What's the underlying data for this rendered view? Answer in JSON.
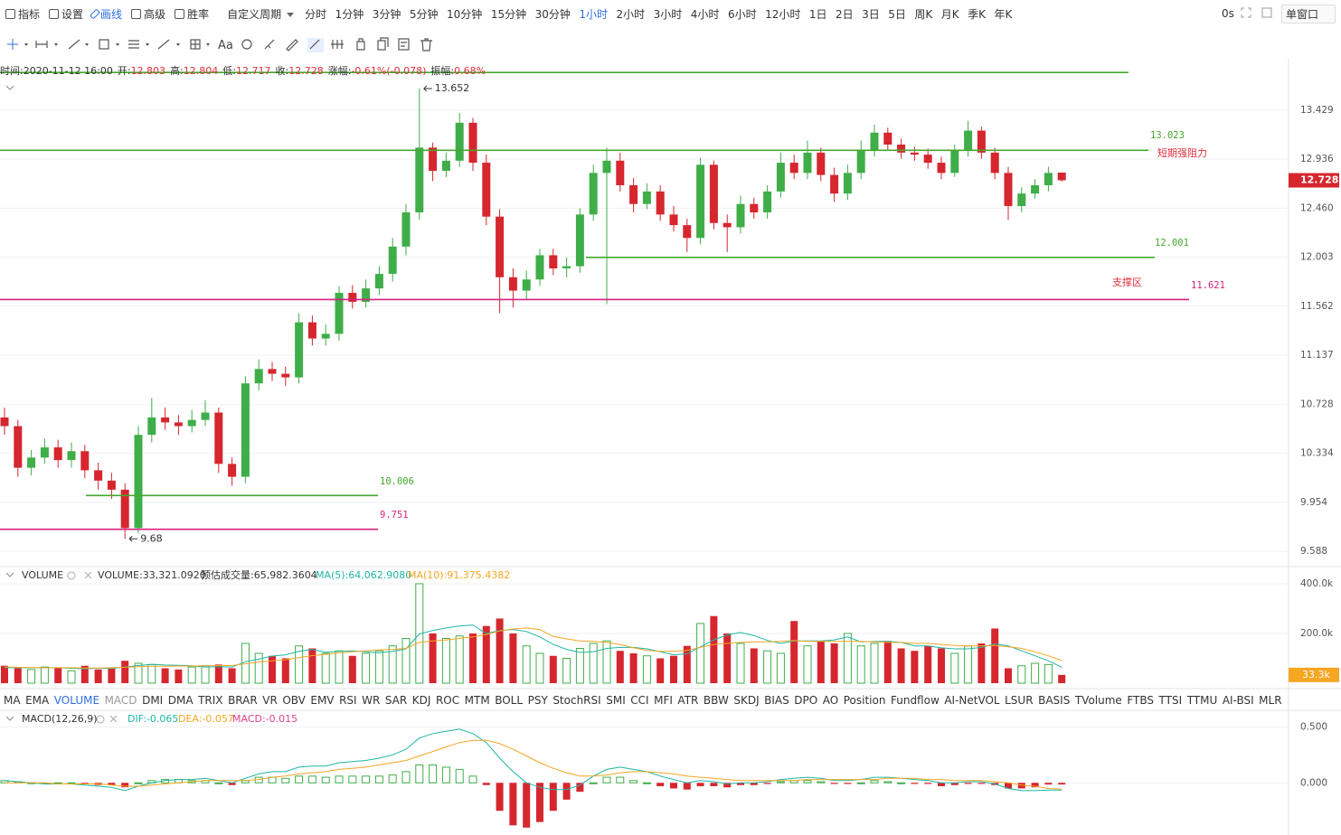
{
  "toolbar": {
    "menu": [
      "指标",
      "设置",
      "画线",
      "高级",
      "胜率"
    ],
    "menu_active": 2,
    "custom_period": "自定义周期",
    "periods": [
      "分时",
      "1分钟",
      "3分钟",
      "5分钟",
      "10分钟",
      "15分钟",
      "30分钟",
      "1小时",
      "2小时",
      "3小时",
      "4小时",
      "6小时",
      "12小时",
      "1日",
      "2日",
      "3日",
      "5日",
      "周K",
      "月K",
      "季K",
      "年K"
    ],
    "period_active": 7,
    "timer": "0s",
    "window_mode": "单窗口",
    "text_tool": "Aa"
  },
  "ohlc_info": [
    {
      "label": "时间:",
      "value": "2020-11-12 16:00"
    },
    {
      "label": "开:",
      "value": 12.803
    },
    {
      "label": "高:",
      "value": 12.804
    },
    {
      "label": "低:",
      "value": 12.717
    },
    {
      "label": "收:",
      "value": 12.728
    },
    {
      "label": "涨幅:",
      "value": "-0.61%(-0.078)"
    },
    {
      "label": "振幅:",
      "value": "0.68%"
    }
  ],
  "chart_data": [
    {
      "type": "candlestick",
      "up_color": "#3fae49",
      "down_color": "#d6262e",
      "open": [
        10.62,
        10.55,
        10.22,
        10.3,
        10.38,
        10.28,
        10.35,
        10.2,
        10.12,
        10.05,
        9.76,
        10.48,
        10.62,
        10.58,
        10.55,
        10.6,
        10.66,
        10.25,
        10.15,
        10.9,
        11.02,
        10.98,
        10.95,
        11.42,
        11.28,
        11.32,
        11.68,
        11.6,
        11.72,
        11.85,
        12.1,
        12.42,
        13.05,
        12.82,
        12.92,
        13.3,
        12.9,
        12.38,
        11.82,
        11.7,
        11.8,
        12.02,
        11.9,
        11.92,
        12.4,
        12.8,
        12.92,
        12.68,
        12.5,
        12.62,
        12.4,
        12.3,
        12.18,
        12.88,
        12.32,
        12.28,
        12.5,
        12.42,
        12.62,
        12.9,
        12.8,
        13.0,
        12.78,
        12.6,
        12.8,
        13.02,
        13.2,
        13.08,
        13.0,
        12.98,
        12.9,
        12.8,
        13.02,
        13.22,
        13.0,
        12.8,
        12.48,
        12.6,
        12.68,
        12.803
      ],
      "high": [
        10.7,
        10.6,
        10.36,
        10.45,
        10.44,
        10.42,
        10.4,
        10.26,
        10.18,
        10.1,
        10.55,
        10.78,
        10.7,
        10.64,
        10.68,
        10.76,
        10.7,
        10.3,
        10.96,
        11.1,
        11.08,
        11.04,
        11.5,
        11.48,
        11.4,
        11.74,
        11.75,
        11.8,
        11.92,
        12.18,
        12.5,
        13.652,
        13.1,
        13.0,
        13.4,
        13.35,
        12.98,
        12.45,
        11.9,
        11.88,
        12.08,
        12.08,
        12.0,
        12.46,
        12.88,
        13.05,
        13.0,
        12.75,
        12.7,
        12.68,
        12.48,
        12.36,
        12.95,
        12.92,
        12.4,
        12.58,
        12.56,
        12.68,
        13.0,
        12.98,
        13.12,
        13.05,
        12.85,
        12.88,
        13.12,
        13.28,
        13.25,
        13.14,
        13.06,
        13.04,
        12.96,
        13.08,
        13.32,
        13.26,
        13.05,
        12.86,
        12.66,
        12.74,
        12.86,
        12.804
      ],
      "low": [
        10.48,
        10.15,
        10.16,
        10.25,
        10.22,
        10.22,
        10.14,
        10.05,
        9.98,
        9.68,
        9.72,
        10.42,
        10.52,
        10.48,
        10.5,
        10.55,
        10.18,
        10.08,
        10.1,
        10.84,
        10.92,
        10.88,
        10.9,
        11.22,
        11.22,
        11.26,
        11.54,
        11.55,
        11.66,
        11.78,
        12.02,
        12.35,
        12.72,
        12.76,
        12.86,
        12.82,
        12.3,
        11.5,
        11.55,
        11.62,
        11.74,
        11.84,
        11.82,
        11.86,
        12.34,
        11.58,
        12.62,
        12.42,
        12.45,
        12.34,
        12.24,
        12.05,
        12.12,
        12.26,
        12.05,
        12.22,
        12.36,
        12.36,
        12.56,
        12.74,
        12.74,
        12.72,
        12.52,
        12.54,
        12.74,
        12.96,
        13.02,
        12.94,
        12.92,
        12.84,
        12.74,
        12.76,
        12.96,
        12.94,
        12.74,
        12.35,
        12.42,
        12.55,
        12.62,
        12.717
      ],
      "close": [
        10.55,
        10.22,
        10.3,
        10.38,
        10.28,
        10.35,
        10.2,
        10.12,
        10.05,
        9.76,
        10.48,
        10.62,
        10.58,
        10.55,
        10.6,
        10.66,
        10.25,
        10.15,
        10.9,
        11.02,
        10.98,
        10.95,
        11.42,
        11.28,
        11.32,
        11.68,
        11.6,
        11.72,
        11.85,
        12.1,
        12.42,
        13.05,
        12.82,
        12.92,
        13.3,
        12.9,
        12.38,
        11.82,
        11.7,
        11.8,
        12.02,
        11.9,
        11.92,
        12.4,
        12.8,
        12.92,
        12.68,
        12.5,
        12.62,
        12.4,
        12.3,
        12.18,
        12.88,
        12.32,
        12.28,
        12.5,
        12.42,
        12.62,
        12.9,
        12.8,
        13.0,
        12.78,
        12.6,
        12.8,
        13.02,
        13.2,
        13.08,
        13.0,
        12.98,
        12.9,
        12.8,
        13.02,
        13.22,
        13.0,
        12.8,
        12.48,
        12.6,
        12.68,
        12.8,
        12.728
      ],
      "ylim": [
        9.49,
        13.966
      ],
      "log_scale": true,
      "grid": true,
      "yticks": [
        13.429,
        12.936,
        {
          "value": 12.46,
          "label": "12.460"
        },
        12.003,
        11.562,
        11.137,
        10.728,
        10.334,
        9.954,
        9.588
      ],
      "current_price": 12.728,
      "lines": [
        {
          "value": 13.82,
          "color": "#46a72e"
        },
        {
          "value": 13.023,
          "color": "#46a72e"
        },
        {
          "value": 12.001,
          "color": "#46a72e"
        },
        {
          "value": 11.621,
          "color": "#d6227e"
        },
        {
          "value": 10.006,
          "color": "#46a72e"
        },
        {
          "value": 9.751,
          "color": "#d6227e"
        }
      ],
      "annotations": [
        {
          "text": "短期强阻力",
          "color": "#e0303a"
        },
        {
          "text": "支撑区",
          "color": "#e0303a"
        }
      ]
    },
    {
      "type": "volume",
      "title": "VOLUME",
      "legend_labels": [
        "VOLUME:33,321.0920",
        "预估成交量:65,982.3604",
        "MA(5):64,062.9080",
        "MA(10):91,375.4382"
      ],
      "values": [
        70000,
        60000,
        55000,
        65000,
        60000,
        50000,
        70000,
        55000,
        60000,
        90000,
        80000,
        75000,
        60000,
        55000,
        65000,
        70000,
        75000,
        60000,
        160000,
        120000,
        110000,
        100000,
        150000,
        140000,
        120000,
        130000,
        110000,
        120000,
        130000,
        150000,
        180000,
        400000,
        200000,
        180000,
        190000,
        200000,
        230000,
        260000,
        200000,
        150000,
        120000,
        110000,
        100000,
        140000,
        160000,
        170000,
        130000,
        120000,
        110000,
        100000,
        110000,
        150000,
        240000,
        270000,
        200000,
        160000,
        140000,
        130000,
        120000,
        250000,
        150000,
        170000,
        160000,
        200000,
        150000,
        160000,
        170000,
        140000,
        130000,
        150000,
        140000,
        120000,
        150000,
        160000,
        220000,
        60000,
        70000,
        80000,
        75000,
        33321.092
      ],
      "series": [
        {
          "color": "#1fb6a5",
          "values": [
            62000,
            62000,
            62000,
            62000,
            62000,
            60000,
            58000,
            60000,
            59000,
            65000,
            71000,
            76000,
            73000,
            72000,
            70000,
            65000,
            66000,
            65000,
            86000,
            97000,
            109000,
            114000,
            128000,
            136000,
            124000,
            128000,
            130000,
            126000,
            122000,
            128000,
            138000,
            198000,
            212000,
            222000,
            230000,
            234000,
            200000,
            212000,
            216000,
            208000,
            186000,
            156000,
            136000,
            124000,
            126000,
            140000,
            144000,
            144000,
            138000,
            126000,
            114000,
            118000,
            146000,
            174000,
            194000,
            204000,
            192000,
            172000,
            160000,
            170000,
            170000,
            170000,
            174000,
            186000,
            166000,
            168000,
            168000,
            164000,
            150000,
            150000,
            142000,
            138000,
            138000,
            144000,
            158000,
            150000,
            130000,
            110000,
            90000,
            64062.908
          ]
        },
        {
          "color": "#f5a623",
          "values": [
            65000,
            64000,
            63000,
            62000,
            62000,
            62000,
            61000,
            61000,
            62000,
            64000,
            66000,
            68000,
            68000,
            69000,
            69000,
            70000,
            71000,
            71000,
            78000,
            85000,
            90000,
            94000,
            103000,
            111000,
            116000,
            122000,
            126000,
            130000,
            134000,
            136000,
            140000,
            164000,
            170000,
            174000,
            180000,
            186000,
            196000,
            210000,
            218000,
            222000,
            216000,
            188000,
            178000,
            170000,
            168000,
            164000,
            156000,
            142000,
            132000,
            128000,
            128000,
            132000,
            144000,
            156000,
            160000,
            164000,
            166000,
            166000,
            168000,
            172000,
            168000,
            168000,
            168000,
            168000,
            168000,
            166000,
            164000,
            164000,
            160000,
            160000,
            156000,
            152000,
            150000,
            150000,
            152000,
            146000,
            140000,
            126000,
            110000,
            91375.4382
          ]
        }
      ],
      "ylim": [
        0,
        458000
      ],
      "grid": true,
      "yticks": [
        {
          "value": 400000,
          "label": "400.0k"
        },
        {
          "value": 200000,
          "label": "200.0k"
        }
      ],
      "current_value": {
        "value": 33321.092,
        "label": "33.3k"
      }
    },
    {
      "type": "macd",
      "title": "MACD(12,26,9)",
      "legend_labels": [
        "DIF:-0.065",
        "DEA:-0.057",
        "MACD:-0.015"
      ],
      "series": [
        {
          "color": "#1fb6a5",
          "values": [
            0.02,
            0.01,
            0.0,
            -0.01,
            -0.01,
            -0.01,
            -0.02,
            -0.03,
            -0.04,
            -0.07,
            -0.03,
            0.0,
            0.02,
            0.03,
            0.03,
            0.04,
            0.02,
            0.0,
            0.04,
            0.08,
            0.1,
            0.1,
            0.14,
            0.15,
            0.15,
            0.18,
            0.19,
            0.2,
            0.22,
            0.25,
            0.3,
            0.4,
            0.44,
            0.46,
            0.48,
            0.44,
            0.36,
            0.22,
            0.1,
            0.0,
            -0.04,
            -0.06,
            -0.06,
            -0.02,
            0.06,
            0.12,
            0.14,
            0.12,
            0.1,
            0.06,
            0.03,
            0.0,
            0.02,
            0.01,
            -0.01,
            0.0,
            0.0,
            0.01,
            0.03,
            0.04,
            0.05,
            0.04,
            0.02,
            0.02,
            0.03,
            0.05,
            0.05,
            0.04,
            0.03,
            0.02,
            0.0,
            0.0,
            0.01,
            0.01,
            -0.01,
            -0.05,
            -0.07,
            -0.07,
            -0.065,
            -0.065
          ]
        },
        {
          "color": "#f5a623",
          "values": [
            0.0,
            0.0,
            0.0,
            0.0,
            -0.01,
            -0.01,
            -0.01,
            -0.01,
            -0.02,
            -0.03,
            -0.03,
            -0.02,
            -0.01,
            0.0,
            0.01,
            0.02,
            0.02,
            0.02,
            0.02,
            0.03,
            0.05,
            0.06,
            0.08,
            0.09,
            0.1,
            0.12,
            0.13,
            0.14,
            0.16,
            0.18,
            0.2,
            0.24,
            0.28,
            0.32,
            0.36,
            0.38,
            0.38,
            0.35,
            0.3,
            0.24,
            0.18,
            0.13,
            0.09,
            0.06,
            0.06,
            0.07,
            0.09,
            0.1,
            0.1,
            0.09,
            0.08,
            0.06,
            0.05,
            0.04,
            0.03,
            0.02,
            0.02,
            0.02,
            0.02,
            0.02,
            0.03,
            0.03,
            0.03,
            0.03,
            0.03,
            0.03,
            0.04,
            0.04,
            0.04,
            0.03,
            0.03,
            0.02,
            0.02,
            0.02,
            0.01,
            0.0,
            -0.02,
            -0.03,
            -0.05,
            -0.057
          ]
        }
      ],
      "histogram": [
        0.02,
        0.01,
        0.0,
        -0.01,
        0.0,
        0.0,
        -0.01,
        -0.02,
        -0.02,
        -0.04,
        0.0,
        0.02,
        0.03,
        0.03,
        0.02,
        0.02,
        0.0,
        -0.02,
        0.02,
        0.05,
        0.05,
        0.04,
        0.06,
        0.06,
        0.05,
        0.06,
        0.06,
        0.06,
        0.06,
        0.07,
        0.1,
        0.16,
        0.16,
        0.14,
        0.12,
        0.06,
        -0.02,
        -0.25,
        -0.38,
        -0.4,
        -0.35,
        -0.25,
        -0.15,
        -0.08,
        0.0,
        0.05,
        0.05,
        0.02,
        0.0,
        -0.03,
        -0.05,
        -0.06,
        -0.03,
        -0.03,
        -0.04,
        -0.02,
        -0.02,
        -0.01,
        0.01,
        0.02,
        0.02,
        0.01,
        -0.01,
        -0.01,
        0.0,
        0.02,
        0.01,
        0.0,
        -0.01,
        -0.01,
        -0.03,
        -0.02,
        -0.01,
        -0.01,
        -0.02,
        -0.05,
        -0.05,
        -0.04,
        -0.015,
        -0.015
      ],
      "ylim": [
        -0.45,
        0.64
      ],
      "grid": true,
      "yticks": [
        {
          "value": 0.5,
          "label": "0.500"
        },
        {
          "value": 0,
          "label": "0.000"
        }
      ]
    }
  ],
  "indicator_tabs": {
    "items": [
      "MA",
      "EMA",
      "VOLUME",
      "MACD",
      "DMI",
      "DMA",
      "TRIX",
      "BRAR",
      "VR",
      "OBV",
      "EMV",
      "RSI",
      "WR",
      "SAR",
      "KDJ",
      "ROC",
      "MTM",
      "BOLL",
      "PSY",
      "StochRSI",
      "SMI",
      "CCI",
      "MFI",
      "ATR",
      "BBW",
      "SKDJ",
      "BIAS",
      "DPO",
      "AO",
      "Position",
      "Fundflow",
      "AI-NetVOL",
      "LSUR",
      "BASIS",
      "TVolume",
      "FTBS",
      "TTSI",
      "TTMU",
      "AI-BSI",
      "MLR"
    ],
    "active_index": 2,
    "muted_index": 3
  }
}
